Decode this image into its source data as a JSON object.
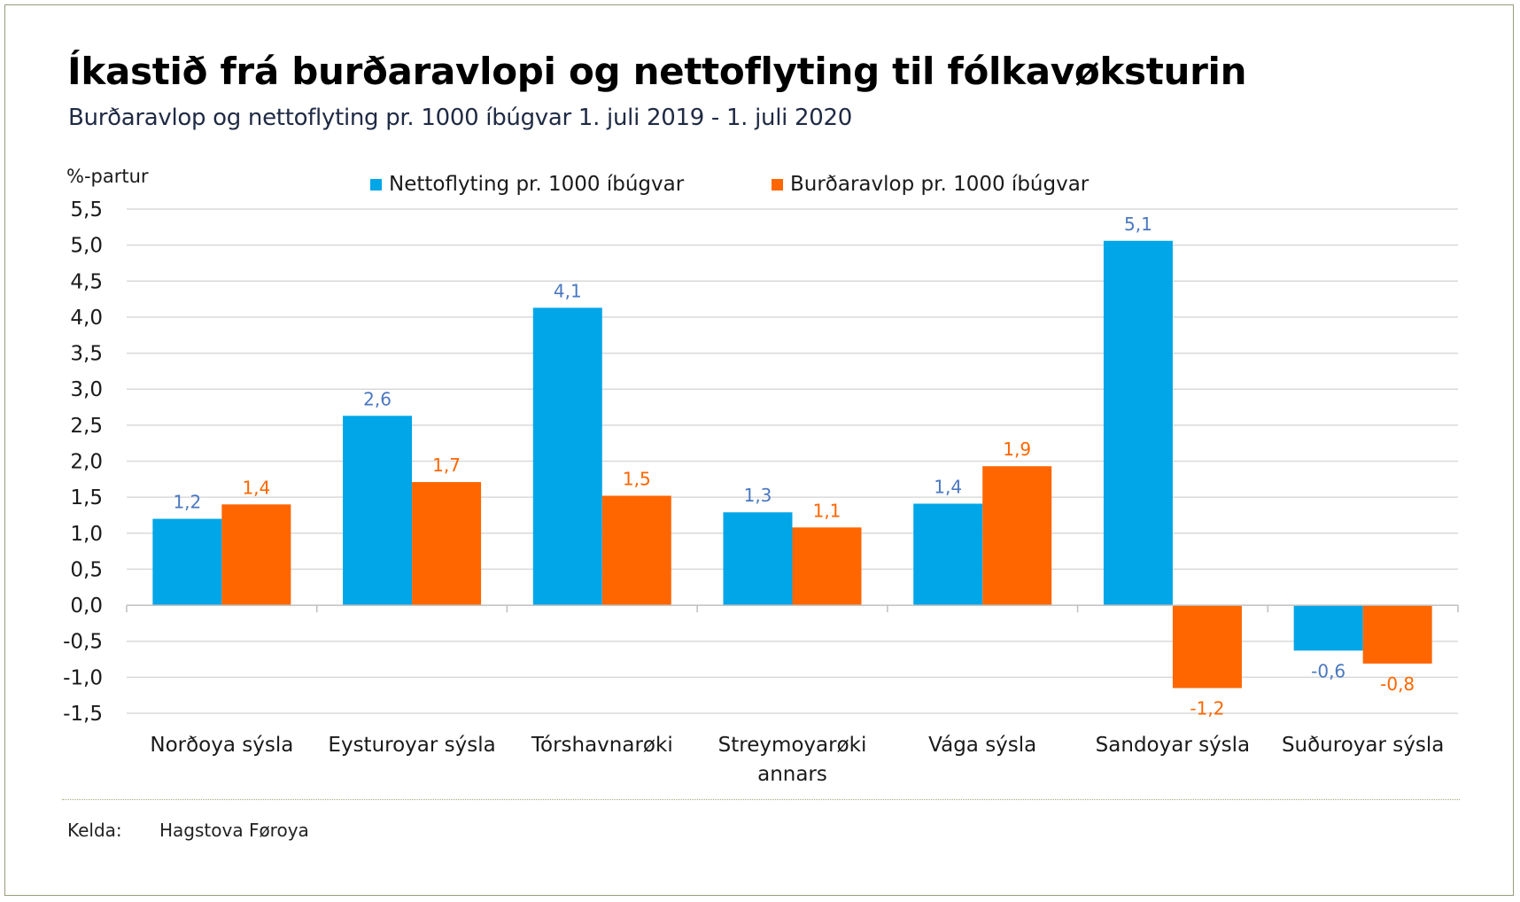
{
  "title": "Íkastið frá burðaravlopi og nettoflyting til fólkavøksturin",
  "subtitle": "Burðaravlop og nettoflyting pr. 1000 íbúgvar 1. juli 2019 - 1. juli 2020",
  "source": {
    "label": "Kelda:",
    "value": "Hagstova Føroya"
  },
  "colors": {
    "series1": "#00a6e8",
    "series2": "#ff6600",
    "label1": "#4a78c0",
    "label2": "#ff6600",
    "grid": "#d9d9d9"
  },
  "chart_data": {
    "type": "bar",
    "ylabel": "%-partur",
    "ylim": [
      -1.5,
      5.5
    ],
    "yticks": [
      5.5,
      5.0,
      4.5,
      4.0,
      3.5,
      3.0,
      2.5,
      2.0,
      1.5,
      1.0,
      0.5,
      0.0,
      -0.5,
      -1.0,
      -1.5
    ],
    "ytick_labels": [
      "5,5",
      "5,0",
      "4,5",
      "4,0",
      "3,5",
      "3,0",
      "2,5",
      "2,0",
      "1,5",
      "1,0",
      "0,5",
      "0,0",
      "-0,5",
      "-1,0",
      "-1,5"
    ],
    "categories": [
      [
        "Norðoya sýsla"
      ],
      [
        "Eysturoyar sýsla"
      ],
      [
        "Tórshavnarøki"
      ],
      [
        "Streymoyarøki",
        "annars"
      ],
      [
        "Vága sýsla"
      ],
      [
        "Sandoyar sýsla"
      ],
      [
        "Suðuroyar sýsla"
      ]
    ],
    "series": [
      {
        "name": "Nettoflyting pr. 1000 íbúgvar",
        "values": [
          1.2,
          2.63,
          4.13,
          1.29,
          1.41,
          5.06,
          -0.63
        ],
        "labels": [
          "1,2",
          "2,6",
          "4,1",
          "1,3",
          "1,4",
          "5,1",
          "-0,6"
        ]
      },
      {
        "name": "Burðaravlop pr. 1000 íbúgvar",
        "values": [
          1.4,
          1.71,
          1.52,
          1.08,
          1.93,
          -1.15,
          -0.81
        ],
        "labels": [
          "1,4",
          "1,7",
          "1,5",
          "1,1",
          "1,9",
          "-1,2",
          "-0,8"
        ]
      }
    ],
    "grid": true,
    "legend": "top"
  }
}
